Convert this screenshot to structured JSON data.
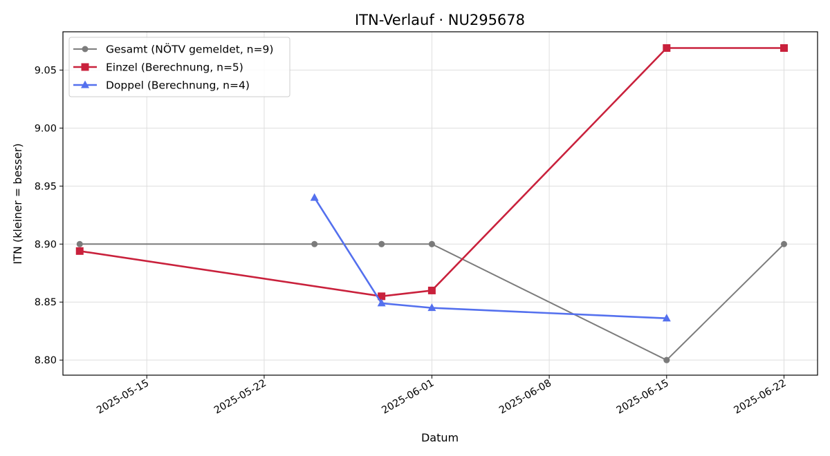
{
  "chart_data": {
    "type": "line",
    "title": "ITN-Verlauf · NU295678",
    "xlabel": "Datum",
    "ylabel": "ITN  (kleiner = besser)",
    "x_axis_type": "date",
    "xlim": [
      "2025-05-10",
      "2025-06-24"
    ],
    "ylim": [
      8.787,
      9.083
    ],
    "x_ticks": [
      "2025-05-15",
      "2025-05-22",
      "2025-06-01",
      "2025-06-08",
      "2025-06-15",
      "2025-06-22"
    ],
    "y_ticks": [
      8.8,
      8.85,
      8.9,
      8.95,
      9.0,
      9.05
    ],
    "y_tick_labels": [
      "8.80",
      "8.85",
      "8.90",
      "8.95",
      "9.00",
      "9.05"
    ],
    "grid": true,
    "legend_position": "top-left",
    "series": [
      {
        "name": "Gesamt (NÖTV gemeldet, n=9)",
        "color": "#6e6e6e",
        "marker": "circle",
        "points": [
          {
            "x": "2025-05-11",
            "y": 8.9
          },
          {
            "x": "2025-05-25",
            "y": 8.9
          },
          {
            "x": "2025-05-29",
            "y": 8.9
          },
          {
            "x": "2025-05-29",
            "y": 8.9
          },
          {
            "x": "2025-06-01",
            "y": 8.9
          },
          {
            "x": "2025-06-01",
            "y": 8.9
          },
          {
            "x": "2025-06-15",
            "y": 8.8
          },
          {
            "x": "2025-06-15",
            "y": 8.8
          },
          {
            "x": "2025-06-22",
            "y": 8.9
          }
        ]
      },
      {
        "name": "Einzel (Berechnung, n=5)",
        "color": "#c9213c",
        "marker": "square",
        "points": [
          {
            "x": "2025-05-11",
            "y": 8.894
          },
          {
            "x": "2025-05-29",
            "y": 8.855
          },
          {
            "x": "2025-06-01",
            "y": 8.86
          },
          {
            "x": "2025-06-15",
            "y": 9.069
          },
          {
            "x": "2025-06-22",
            "y": 9.069
          }
        ]
      },
      {
        "name": "Doppel (Berechnung, n=4)",
        "color": "#5470ee",
        "marker": "triangle",
        "points": [
          {
            "x": "2025-05-25",
            "y": 8.94
          },
          {
            "x": "2025-05-29",
            "y": 8.849
          },
          {
            "x": "2025-06-01",
            "y": 8.845
          },
          {
            "x": "2025-06-15",
            "y": 8.836
          }
        ]
      }
    ]
  }
}
